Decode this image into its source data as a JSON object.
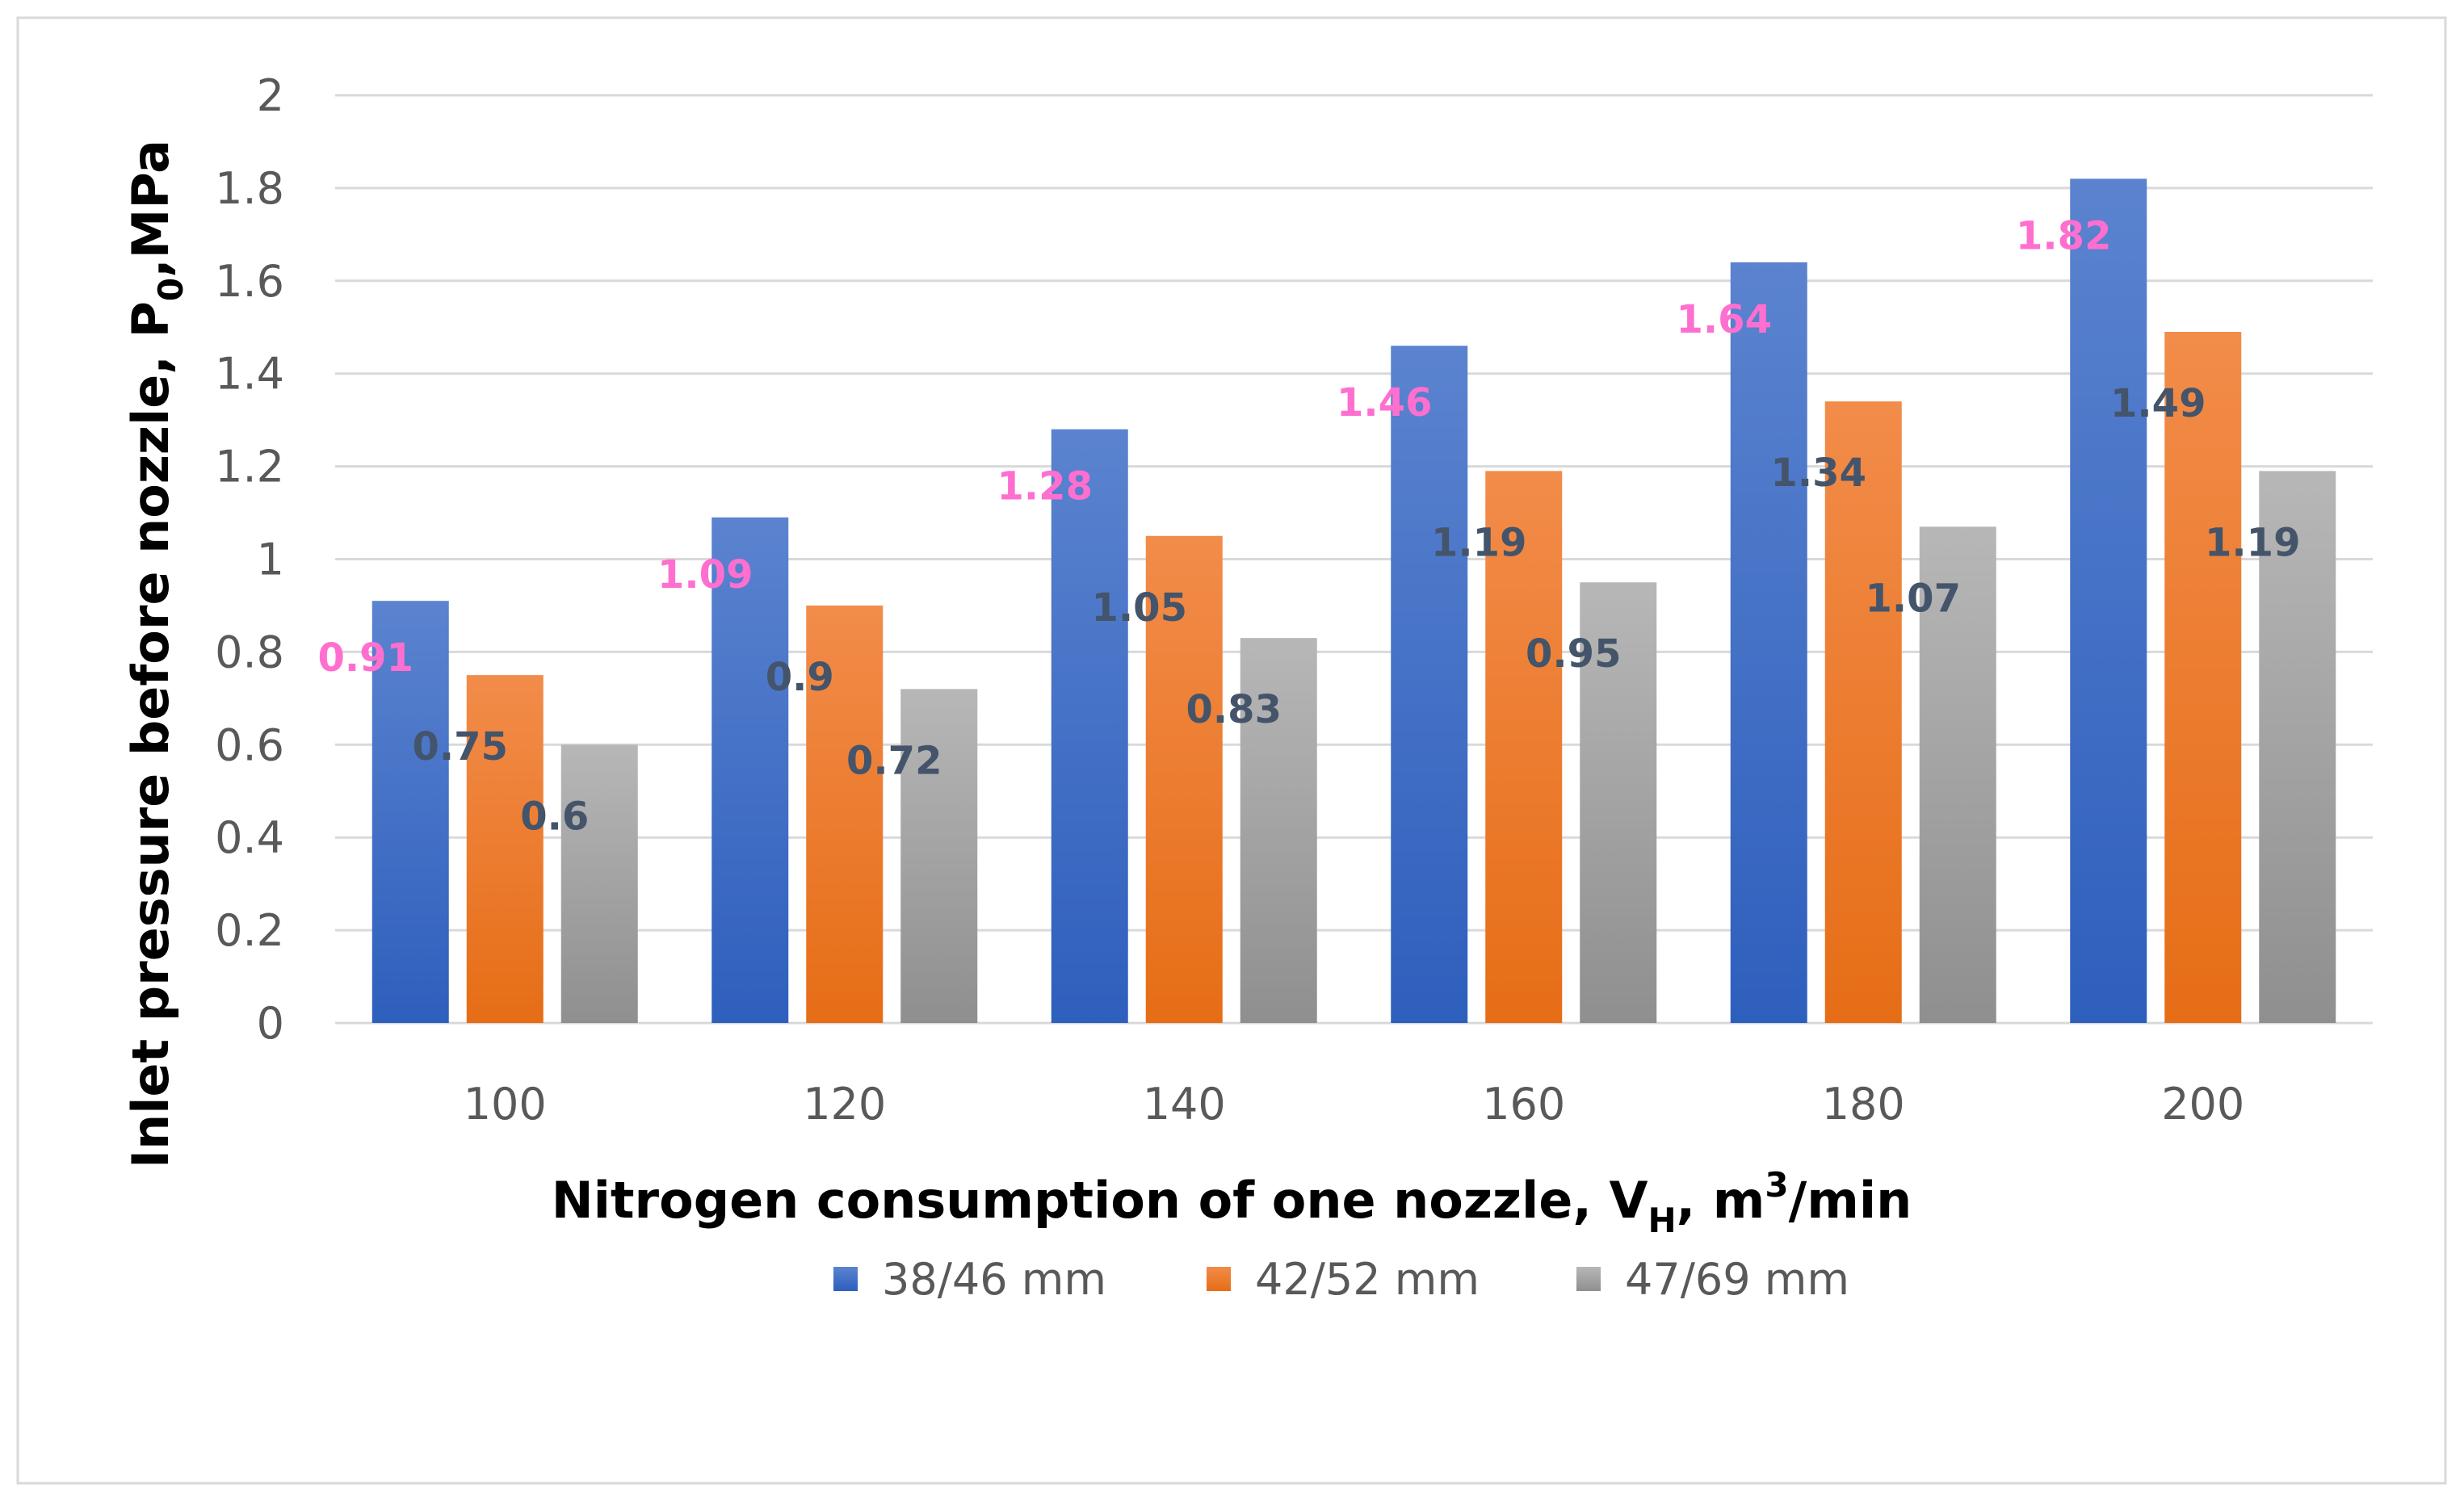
{
  "chart_data": {
    "type": "bar",
    "title": "",
    "xlabel": {
      "main": "Nitrogen consumption of one nozzle, V",
      "sub": "H",
      "after_sub": ", m",
      "sup": "3",
      "tail": "/min"
    },
    "ylabel": {
      "main": "Inlet pressure before nozzle, P",
      "sub": "0",
      "tail": ",MPa"
    },
    "categories": [
      "100",
      "120",
      "140",
      "160",
      "180",
      "200"
    ],
    "ylim": [
      0,
      2
    ],
    "yticks": [
      "0",
      "0.2",
      "0.4",
      "0.6",
      "0.8",
      "1",
      "1.2",
      "1.4",
      "1.6",
      "1.8",
      "2"
    ],
    "grid": true,
    "legend_position": "bottom",
    "series": [
      {
        "name": "38/46 mm",
        "values": [
          0.91,
          1.09,
          1.28,
          1.46,
          1.64,
          1.82
        ],
        "labels": [
          "0.91",
          "1.09",
          "1.28",
          "1.46",
          "1.64",
          "1.82"
        ],
        "color_top": "#5b83cf",
        "color_bottom": "#2e5fbd",
        "label_color": "#ff6fcf"
      },
      {
        "name": "42/52 mm",
        "values": [
          0.75,
          0.9,
          1.05,
          1.19,
          1.34,
          1.49
        ],
        "labels": [
          "0.75",
          "0.9",
          "1.05",
          "1.19",
          "1.34",
          "1.49"
        ],
        "color_top": "#f28c4a",
        "color_bottom": "#e66d16",
        "label_color": "#44546a"
      },
      {
        "name": "47/69 mm",
        "values": [
          0.6,
          0.72,
          0.83,
          0.95,
          1.07,
          1.19
        ],
        "labels": [
          "0.6",
          "0.72",
          "0.83",
          "0.95",
          "1.07",
          "1.19"
        ],
        "color_top": "#b7b7b7",
        "color_bottom": "#8f8f8f",
        "label_color": "#44546a"
      }
    ]
  }
}
